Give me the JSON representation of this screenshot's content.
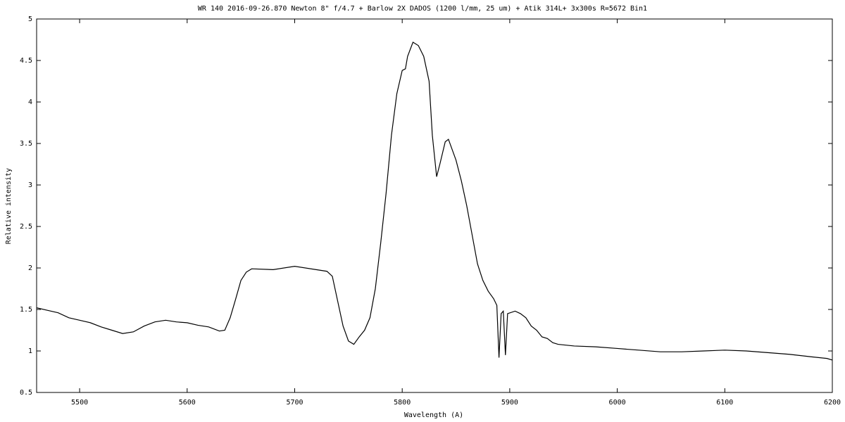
{
  "chart_data": {
    "type": "line",
    "title": "WR 140  2016-09-26.870   Newton 8\" f/4.7 +  Barlow 2X   DADOS (1200 l/mm, 25 um) + Atik 314L+   3x300s   R=5672  Bin1",
    "x_label": "Wavelength (A)",
    "y_label": "Relative intensity",
    "xlim": [
      5460,
      6200
    ],
    "xticks": [
      5500,
      5600,
      5700,
      5800,
      5900,
      6000,
      6100,
      6200
    ],
    "ylim": [
      0.5,
      5
    ],
    "yticks": [
      0.5,
      1,
      1.5,
      2,
      2.5,
      3,
      3.5,
      4,
      4.5,
      5
    ],
    "grid": false,
    "series": [
      {
        "color": "#000000",
        "x": [
          5460,
          5470,
          5480,
          5490,
          5500,
          5510,
          5520,
          5530,
          5540,
          5550,
          5560,
          5570,
          5580,
          5590,
          5600,
          5610,
          5620,
          5630,
          5635,
          5640,
          5645,
          5650,
          5655,
          5660,
          5680,
          5700,
          5720,
          5730,
          5735,
          5740,
          5745,
          5750,
          5755,
          5760,
          5765,
          5770,
          5775,
          5780,
          5785,
          5790,
          5795,
          5800,
          5803,
          5805,
          5810,
          5815,
          5820,
          5825,
          5828,
          5832,
          5835,
          5840,
          5843,
          5850,
          5855,
          5860,
          5865,
          5870,
          5875,
          5880,
          5885,
          5888,
          5890,
          5892,
          5894,
          5896,
          5898,
          5905,
          5910,
          5915,
          5920,
          5925,
          5930,
          5935,
          5940,
          5945,
          5960,
          5980,
          6000,
          6020,
          6040,
          6060,
          6080,
          6100,
          6120,
          6140,
          6160,
          6180,
          6195,
          6200
        ],
        "values": [
          1.52,
          1.49,
          1.46,
          1.4,
          1.37,
          1.34,
          1.29,
          1.25,
          1.21,
          1.23,
          1.3,
          1.35,
          1.37,
          1.35,
          1.34,
          1.31,
          1.29,
          1.24,
          1.25,
          1.4,
          1.62,
          1.85,
          1.95,
          1.99,
          1.98,
          2.02,
          1.98,
          1.96,
          1.9,
          1.6,
          1.3,
          1.12,
          1.08,
          1.17,
          1.25,
          1.4,
          1.75,
          2.3,
          2.9,
          3.6,
          4.1,
          4.38,
          4.4,
          4.55,
          4.72,
          4.68,
          4.55,
          4.25,
          3.6,
          3.1,
          3.25,
          3.52,
          3.55,
          3.3,
          3.05,
          2.75,
          2.4,
          2.05,
          1.85,
          1.72,
          1.63,
          1.55,
          0.92,
          1.45,
          1.48,
          0.95,
          1.45,
          1.48,
          1.45,
          1.4,
          1.3,
          1.25,
          1.17,
          1.15,
          1.1,
          1.08,
          1.06,
          1.05,
          1.03,
          1.01,
          0.99,
          0.99,
          1,
          1.01,
          1,
          0.98,
          0.96,
          0.93,
          0.91,
          0.89
        ]
      }
    ]
  }
}
